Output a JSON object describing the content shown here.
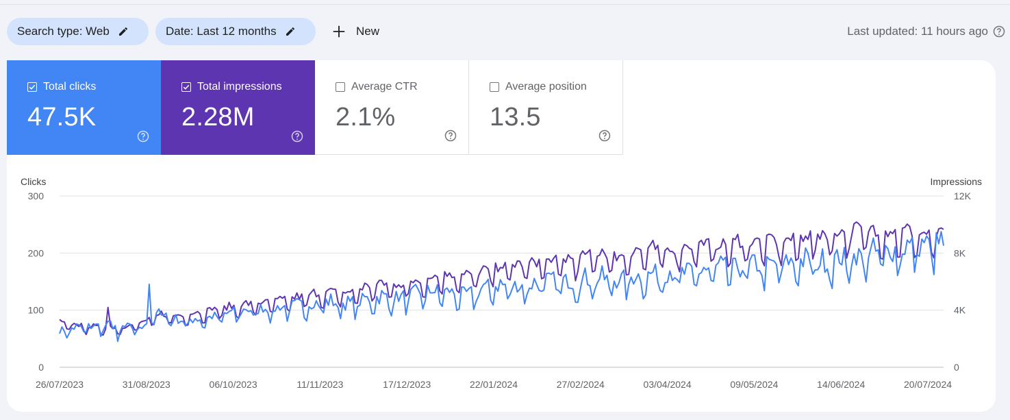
{
  "filters": {
    "search_type": "Search type: Web",
    "date": "Date: Last 12 months",
    "new_label": "New",
    "last_updated": "Last updated: 11 hours ago"
  },
  "metrics": {
    "clicks": {
      "label": "Total clicks",
      "value": "47.5K",
      "checked": true,
      "color": "#4285f4"
    },
    "impressions": {
      "label": "Total impressions",
      "value": "2.28M",
      "checked": true,
      "color": "#5e35b1"
    },
    "ctr": {
      "label": "Average CTR",
      "value": "2.1%",
      "checked": false
    },
    "position": {
      "label": "Average position",
      "value": "13.5",
      "checked": false
    }
  },
  "icons": [
    "pencil-icon",
    "plus-icon",
    "help-circle-icon",
    "checkbox-checked-icon",
    "checkbox-unchecked-icon"
  ],
  "chart_data": {
    "type": "line",
    "left_axis": {
      "label": "Clicks",
      "ticks": [
        "0",
        "100",
        "200",
        "300"
      ],
      "range": [
        0,
        300
      ]
    },
    "right_axis": {
      "label": "Impressions",
      "ticks": [
        "0",
        "4K",
        "8K",
        "12K"
      ],
      "range": [
        0,
        12000
      ]
    },
    "x_tick_labels": [
      "26/07/2023",
      "31/08/2023",
      "06/10/2023",
      "11/11/2023",
      "17/12/2023",
      "22/01/2024",
      "27/02/2024",
      "03/04/2024",
      "09/05/2024",
      "14/06/2024",
      "20/07/2024"
    ],
    "x_start": "26/07/2023",
    "x_end": "25/07/2024",
    "grid": true,
    "legend": "none",
    "weekly_clicks": [
      62,
      68,
      70,
      72,
      67,
      72,
      95,
      80,
      82,
      85,
      92,
      98,
      100,
      102,
      105,
      110,
      112,
      108,
      115,
      120,
      118,
      125,
      130,
      128,
      122,
      135,
      140,
      138,
      142,
      148,
      145,
      150,
      152,
      148,
      155,
      158,
      162,
      160,
      165,
      170,
      168,
      175,
      172,
      178,
      182,
      180,
      185,
      188,
      195,
      198,
      205,
      210
    ],
    "weekly_impressions": [
      3050,
      2900,
      2750,
      2700,
      2800,
      3100,
      3600,
      3500,
      3700,
      3950,
      4100,
      4300,
      4400,
      4550,
      4750,
      5000,
      5150,
      5050,
      5450,
      5700,
      5600,
      5850,
      6150,
      6350,
      6250,
      6550,
      6850,
      7000,
      7150,
      7250,
      7350,
      7600,
      7850,
      7500,
      7950,
      8050,
      8000,
      8250,
      8450,
      8300,
      8550,
      8550,
      8650,
      8600,
      8950,
      9050,
      9200,
      9400,
      9400,
      9200,
      9300,
      9000
    ],
    "colors": {
      "clicks": "#4285f4",
      "impressions": "#5e35b1",
      "grid": "#e0e0e0",
      "axis": "#5f6368"
    }
  }
}
